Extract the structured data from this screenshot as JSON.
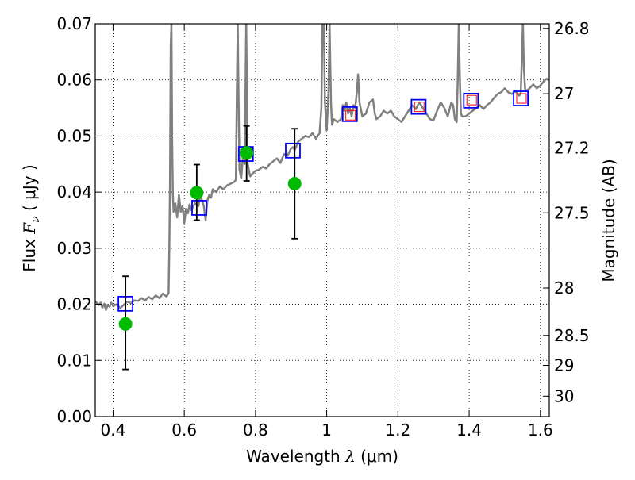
{
  "chart_data": {
    "type": "line",
    "xlabel_text": "Wavelength ",
    "xlabel_symbol": "λ",
    "xlabel_unit": " (μm)",
    "ylabel_text": "Flux ",
    "ylabel_symbol": "F",
    "ylabel_sub": "ν",
    "ylabel_unit": " ( μJy )",
    "y2label": "Magnitude (AB)",
    "xlim": [
      0.35,
      1.625
    ],
    "ylim": [
      0.0,
      0.07
    ],
    "grid": true,
    "x_ticks": [
      {
        "value": 0.4,
        "label": "0.4"
      },
      {
        "value": 0.6,
        "label": "0.6"
      },
      {
        "value": 0.8,
        "label": "0.8"
      },
      {
        "value": 1.0,
        "label": "1"
      },
      {
        "value": 1.2,
        "label": "1.2"
      },
      {
        "value": 1.4,
        "label": "1.4"
      },
      {
        "value": 1.6,
        "label": "1.6"
      }
    ],
    "y_ticks": [
      {
        "value": 0.0,
        "label": "0.00"
      },
      {
        "value": 0.01,
        "label": "0.01"
      },
      {
        "value": 0.02,
        "label": "0.02"
      },
      {
        "value": 0.03,
        "label": "0.03"
      },
      {
        "value": 0.04,
        "label": "0.04"
      },
      {
        "value": 0.05,
        "label": "0.05"
      },
      {
        "value": 0.06,
        "label": "0.06"
      },
      {
        "value": 0.07,
        "label": "0.07"
      }
    ],
    "y2_ticks": [
      {
        "value": 26.8,
        "label": "26.8"
      },
      {
        "value": 27.0,
        "label": "27"
      },
      {
        "value": 27.2,
        "label": "27.2"
      },
      {
        "value": 27.5,
        "label": "27.5"
      },
      {
        "value": 28.0,
        "label": "28"
      },
      {
        "value": 28.5,
        "label": "28.5"
      },
      {
        "value": 29.0,
        "label": "29"
      },
      {
        "value": 30.0,
        "label": "30"
      }
    ],
    "series": [
      {
        "kind": "line",
        "color": "#808080",
        "points": [
          [
            0.35,
            0.0205
          ],
          [
            0.36,
            0.0199
          ],
          [
            0.365,
            0.0203
          ],
          [
            0.37,
            0.0194
          ],
          [
            0.375,
            0.0201
          ],
          [
            0.38,
            0.019
          ],
          [
            0.385,
            0.0199
          ],
          [
            0.39,
            0.0196
          ],
          [
            0.395,
            0.0203
          ],
          [
            0.4,
            0.0197
          ],
          [
            0.41,
            0.02
          ],
          [
            0.42,
            0.0193
          ],
          [
            0.43,
            0.0199
          ],
          [
            0.44,
            0.0205
          ],
          [
            0.45,
            0.0202
          ],
          [
            0.46,
            0.0207
          ],
          [
            0.47,
            0.0206
          ],
          [
            0.48,
            0.0211
          ],
          [
            0.49,
            0.0207
          ],
          [
            0.5,
            0.0213
          ],
          [
            0.51,
            0.0209
          ],
          [
            0.52,
            0.0216
          ],
          [
            0.53,
            0.0211
          ],
          [
            0.54,
            0.0219
          ],
          [
            0.55,
            0.0214
          ],
          [
            0.556,
            0.022
          ],
          [
            0.558,
            0.03
          ],
          [
            0.56,
            0.042
          ],
          [
            0.562,
            0.066
          ],
          [
            0.564,
            0.07
          ],
          [
            0.566,
            0.049
          ],
          [
            0.568,
            0.0395
          ],
          [
            0.57,
            0.0365
          ],
          [
            0.575,
            0.038
          ],
          [
            0.58,
            0.0355
          ],
          [
            0.585,
            0.0395
          ],
          [
            0.59,
            0.0365
          ],
          [
            0.595,
            0.0375
          ],
          [
            0.6,
            0.0345
          ],
          [
            0.605,
            0.037
          ],
          [
            0.61,
            0.0362
          ],
          [
            0.615,
            0.0378
          ],
          [
            0.62,
            0.0368
          ],
          [
            0.63,
            0.038
          ],
          [
            0.64,
            0.0375
          ],
          [
            0.645,
            0.0395
          ],
          [
            0.65,
            0.0385
          ],
          [
            0.655,
            0.0375
          ],
          [
            0.66,
            0.035
          ],
          [
            0.665,
            0.0385
          ],
          [
            0.67,
            0.0395
          ],
          [
            0.675,
            0.039
          ],
          [
            0.68,
            0.0405
          ],
          [
            0.69,
            0.04
          ],
          [
            0.7,
            0.041
          ],
          [
            0.71,
            0.0405
          ],
          [
            0.72,
            0.0412
          ],
          [
            0.73,
            0.0415
          ],
          [
            0.74,
            0.0418
          ],
          [
            0.745,
            0.0422
          ],
          [
            0.748,
            0.06
          ],
          [
            0.75,
            0.07
          ],
          [
            0.752,
            0.06
          ],
          [
            0.755,
            0.044
          ],
          [
            0.76,
            0.0425
          ],
          [
            0.765,
            0.0465
          ],
          [
            0.77,
            0.045
          ],
          [
            0.772,
            0.058
          ],
          [
            0.774,
            0.07
          ],
          [
            0.776,
            0.058
          ],
          [
            0.778,
            0.045
          ],
          [
            0.785,
            0.0428
          ],
          [
            0.79,
            0.0432
          ],
          [
            0.8,
            0.0438
          ],
          [
            0.81,
            0.044
          ],
          [
            0.82,
            0.0445
          ],
          [
            0.83,
            0.0442
          ],
          [
            0.84,
            0.045
          ],
          [
            0.85,
            0.0455
          ],
          [
            0.86,
            0.046
          ],
          [
            0.87,
            0.0452
          ],
          [
            0.88,
            0.0468
          ],
          [
            0.89,
            0.0465
          ],
          [
            0.9,
            0.0478
          ],
          [
            0.905,
            0.048
          ],
          [
            0.91,
            0.0475
          ],
          [
            0.915,
            0.0482
          ],
          [
            0.92,
            0.049
          ],
          [
            0.93,
            0.0495
          ],
          [
            0.94,
            0.05
          ],
          [
            0.95,
            0.0498
          ],
          [
            0.96,
            0.0505
          ],
          [
            0.97,
            0.0495
          ],
          [
            0.98,
            0.0505
          ],
          [
            0.985,
            0.055
          ],
          [
            0.988,
            0.07
          ],
          [
            0.992,
            0.07
          ],
          [
            0.995,
            0.056
          ],
          [
            1.0,
            0.051
          ],
          [
            1.005,
            0.058
          ],
          [
            1.008,
            0.07
          ],
          [
            1.012,
            0.056
          ],
          [
            1.015,
            0.052
          ],
          [
            1.02,
            0.053
          ],
          [
            1.03,
            0.0525
          ],
          [
            1.04,
            0.053
          ],
          [
            1.045,
            0.0555
          ],
          [
            1.05,
            0.0545
          ],
          [
            1.055,
            0.056
          ],
          [
            1.06,
            0.054
          ],
          [
            1.065,
            0.055
          ],
          [
            1.07,
            0.0535
          ],
          [
            1.075,
            0.0555
          ],
          [
            1.08,
            0.055
          ],
          [
            1.085,
            0.058
          ],
          [
            1.088,
            0.061
          ],
          [
            1.092,
            0.056
          ],
          [
            1.1,
            0.0535
          ],
          [
            1.11,
            0.054
          ],
          [
            1.12,
            0.056
          ],
          [
            1.13,
            0.0565
          ],
          [
            1.135,
            0.054
          ],
          [
            1.14,
            0.053
          ],
          [
            1.15,
            0.0535
          ],
          [
            1.16,
            0.0545
          ],
          [
            1.17,
            0.054
          ],
          [
            1.18,
            0.0545
          ],
          [
            1.19,
            0.0535
          ],
          [
            1.2,
            0.053
          ],
          [
            1.21,
            0.0525
          ],
          [
            1.22,
            0.0535
          ],
          [
            1.23,
            0.0545
          ],
          [
            1.24,
            0.0555
          ],
          [
            1.25,
            0.0548
          ],
          [
            1.26,
            0.056
          ],
          [
            1.27,
            0.055
          ],
          [
            1.28,
            0.054
          ],
          [
            1.29,
            0.053
          ],
          [
            1.3,
            0.0528
          ],
          [
            1.31,
            0.0545
          ],
          [
            1.32,
            0.056
          ],
          [
            1.33,
            0.055
          ],
          [
            1.34,
            0.0535
          ],
          [
            1.35,
            0.056
          ],
          [
            1.355,
            0.0555
          ],
          [
            1.36,
            0.053
          ],
          [
            1.365,
            0.0525
          ],
          [
            1.368,
            0.06
          ],
          [
            1.371,
            0.07
          ],
          [
            1.374,
            0.06
          ],
          [
            1.377,
            0.054
          ],
          [
            1.38,
            0.0535
          ],
          [
            1.39,
            0.0535
          ],
          [
            1.4,
            0.054
          ],
          [
            1.41,
            0.0545
          ],
          [
            1.42,
            0.055
          ],
          [
            1.43,
            0.0555
          ],
          [
            1.44,
            0.0548
          ],
          [
            1.45,
            0.0555
          ],
          [
            1.46,
            0.056
          ],
          [
            1.47,
            0.0568
          ],
          [
            1.48,
            0.0575
          ],
          [
            1.49,
            0.0578
          ],
          [
            1.5,
            0.0585
          ],
          [
            1.51,
            0.0578
          ],
          [
            1.52,
            0.0575
          ],
          [
            1.53,
            0.058
          ],
          [
            1.54,
            0.0572
          ],
          [
            1.545,
            0.0575
          ],
          [
            1.548,
            0.064
          ],
          [
            1.551,
            0.07
          ],
          [
            1.554,
            0.062
          ],
          [
            1.557,
            0.0585
          ],
          [
            1.56,
            0.058
          ],
          [
            1.57,
            0.0585
          ],
          [
            1.58,
            0.0592
          ],
          [
            1.59,
            0.0585
          ],
          [
            1.6,
            0.059
          ],
          [
            1.61,
            0.0598
          ],
          [
            1.618,
            0.0602
          ],
          [
            1.625,
            0.06
          ]
        ]
      },
      {
        "kind": "open_square",
        "color": "#0000ff",
        "points": [
          [
            0.435,
            0.0201
          ],
          [
            0.642,
            0.0372
          ],
          [
            0.773,
            0.0468
          ],
          [
            0.905,
            0.0474
          ],
          [
            1.065,
            0.0539
          ],
          [
            1.258,
            0.0552
          ],
          [
            1.405,
            0.0563
          ],
          [
            1.545,
            0.0567
          ]
        ]
      },
      {
        "kind": "open_square_small",
        "color": "#ff0000",
        "points": [
          [
            1.067,
            0.0537
          ],
          [
            1.26,
            0.0552
          ],
          [
            1.407,
            0.0564
          ],
          [
            1.547,
            0.0567
          ]
        ]
      },
      {
        "kind": "filled_circle_errorbar",
        "color": "#00bb00",
        "points": [
          [
            0.435,
            0.0165,
            0.0084,
            0.025
          ],
          [
            0.635,
            0.0399,
            0.035,
            0.0449
          ],
          [
            0.775,
            0.047,
            0.042,
            0.0518
          ],
          [
            0.91,
            0.0415,
            0.0317,
            0.0513
          ]
        ]
      }
    ]
  }
}
